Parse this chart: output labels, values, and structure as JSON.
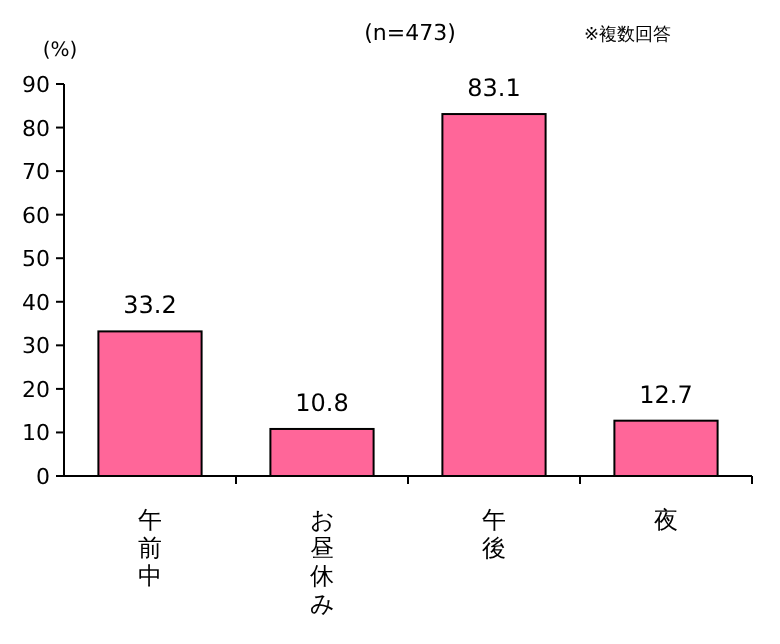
{
  "chart_data": {
    "type": "bar",
    "subtitle": "(n=473)",
    "ylabel": "(%)",
    "annotations": [
      "※複数回答"
    ],
    "categories": [
      "午前中",
      "お昼休み",
      "午後",
      "夜"
    ],
    "values": [
      33.2,
      10.8,
      83.1,
      12.7
    ],
    "color": "#ff6699",
    "ylim": [
      0,
      90
    ],
    "yticks": [
      0,
      10,
      20,
      30,
      40,
      50,
      60,
      70,
      80,
      90
    ],
    "data_labels": true
  }
}
